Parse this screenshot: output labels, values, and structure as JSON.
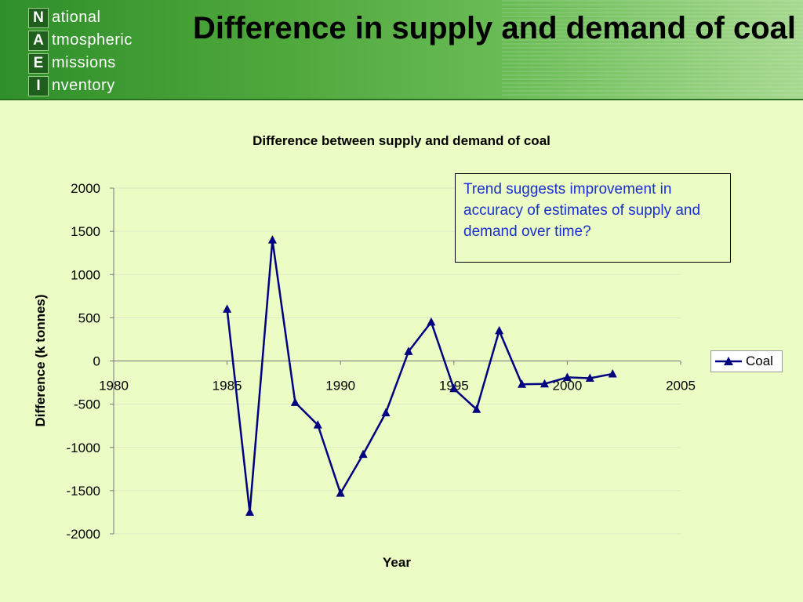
{
  "header": {
    "logo": [
      {
        "letter": "N",
        "rest": "ational"
      },
      {
        "letter": "A",
        "rest": "tmospheric"
      },
      {
        "letter": "E",
        "rest": "missions"
      },
      {
        "letter": "I",
        "rest": "nventory"
      }
    ],
    "title": "Difference in supply and demand of coal"
  },
  "annotation": "Trend suggests improvement in accuracy of estimates of supply and demand over time?",
  "colors": {
    "line": "#000080",
    "axis": "#777777",
    "grid": "#d9ebc4"
  },
  "chart_data": {
    "type": "line",
    "title": "Difference between supply and demand of coal",
    "xlabel": "Year",
    "ylabel": "Difference (k tonnes)",
    "xlim": [
      1980,
      2005
    ],
    "ylim": [
      -2000,
      2000
    ],
    "x_ticks": [
      1980,
      1985,
      1990,
      1995,
      2000,
      2005
    ],
    "y_ticks": [
      2000,
      1500,
      1000,
      500,
      0,
      -500,
      -1000,
      -1500,
      -2000
    ],
    "grid": "horizontal",
    "legend": "right",
    "series": [
      {
        "name": "Coal",
        "marker": "triangle",
        "x": [
          1985,
          1986,
          1987,
          1988,
          1989,
          1990,
          1991,
          1992,
          1993,
          1994,
          1995,
          1996,
          1997,
          1998,
          1999,
          2000,
          2001,
          2002
        ],
        "values": [
          600,
          -1750,
          1400,
          -480,
          -740,
          -1530,
          -1080,
          -600,
          110,
          450,
          -320,
          -560,
          350,
          -270,
          -265,
          -190,
          -200,
          -150
        ]
      }
    ]
  }
}
